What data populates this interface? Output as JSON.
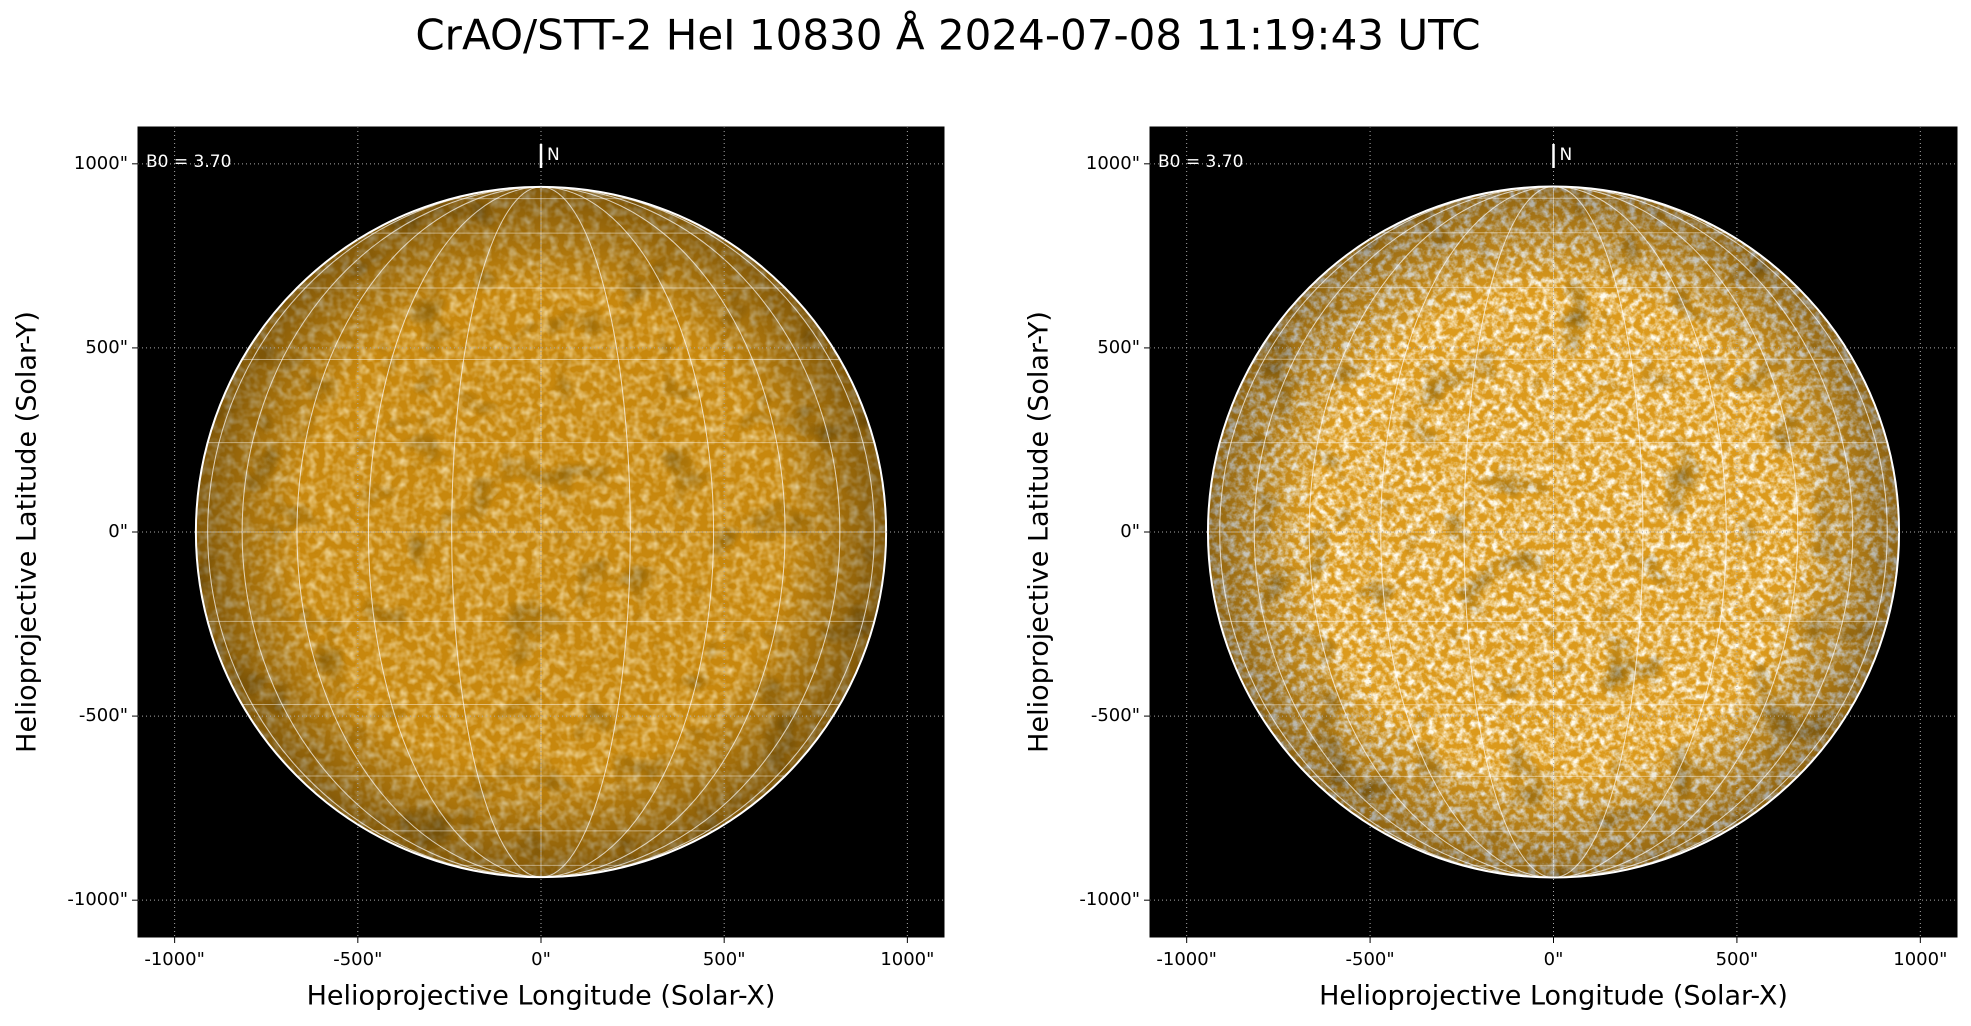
{
  "title": "CrAO/STT-2 HeI 10830 Å 2024-07-08 11:19:43 UTC",
  "chart_data": [
    {
      "type": "image",
      "xlabel": "Helioprojective Longitude (Solar-X)",
      "ylabel": "Helioprojective Latitude (Solar-Y)",
      "annotation": "B0 = 3.70",
      "north_label": "N",
      "disk_color": "#c8880e",
      "solar_radius": 942,
      "xlim": [
        -1100,
        1100
      ],
      "ylim": [
        -1100,
        1100
      ],
      "xticks": [
        {
          "value": -1000,
          "label": "-1000\""
        },
        {
          "value": -500,
          "label": "-500\""
        },
        {
          "value": 0,
          "label": "0\""
        },
        {
          "value": 500,
          "label": "500\""
        },
        {
          "value": 1000,
          "label": "1000\""
        }
      ],
      "yticks": [
        {
          "value": -1000,
          "label": "-1000\""
        },
        {
          "value": -500,
          "label": "-500\""
        },
        {
          "value": 0,
          "label": "0\""
        },
        {
          "value": 500,
          "label": "500\""
        },
        {
          "value": 1000,
          "label": "1000\""
        }
      ],
      "grid": true
    },
    {
      "type": "image",
      "xlabel": "Helioprojective Longitude (Solar-X)",
      "ylabel": "Helioprojective Latitude (Solar-Y)",
      "annotation": "B0 = 3.70",
      "north_label": "N",
      "disk_color": "#dc9a1c",
      "solar_radius": 942,
      "xlim": [
        -1100,
        1100
      ],
      "ylim": [
        -1100,
        1100
      ],
      "xticks": [
        {
          "value": -1000,
          "label": "-1000\""
        },
        {
          "value": -500,
          "label": "-500\""
        },
        {
          "value": 0,
          "label": "0\""
        },
        {
          "value": 500,
          "label": "500\""
        },
        {
          "value": 1000,
          "label": "1000\""
        }
      ],
      "yticks": [
        {
          "value": -1000,
          "label": "-1000\""
        },
        {
          "value": -500,
          "label": "-500\""
        },
        {
          "value": 0,
          "label": "0\""
        },
        {
          "value": 500,
          "label": "500\""
        },
        {
          "value": 1000,
          "label": "1000\""
        }
      ],
      "grid": true
    }
  ]
}
